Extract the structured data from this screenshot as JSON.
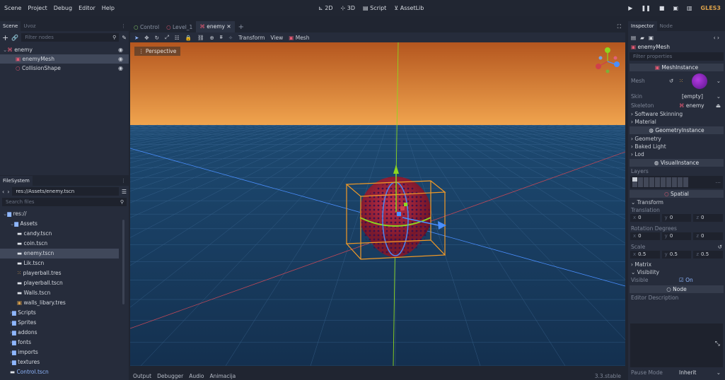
{
  "menubar": {
    "menus": [
      "Scene",
      "Project",
      "Debug",
      "Editor",
      "Help"
    ],
    "modes": [
      "2D",
      "3D",
      "Script",
      "AssetLib"
    ],
    "play_icons": [
      "play-icon",
      "pause-icon",
      "stop-icon",
      "play-scene-icon",
      "play-custom-icon"
    ],
    "renderer": "GLES3"
  },
  "scene_dock": {
    "tabs": [
      "Scene",
      "Uvoz"
    ],
    "filter_placeholder": "Filter nodes",
    "nodes": [
      {
        "label": "enemy",
        "indent": 0,
        "selected": false
      },
      {
        "label": "enemyMesh",
        "indent": 1,
        "selected": true
      },
      {
        "label": "CollisionShape",
        "indent": 1,
        "selected": false
      }
    ]
  },
  "filesystem": {
    "title": "FileSystem",
    "path": "res://Assets/enemy.tscn",
    "search_placeholder": "Search files",
    "items": [
      {
        "label": "res://",
        "indent": 0,
        "type": "folder",
        "selected": false
      },
      {
        "label": "Assets",
        "indent": 1,
        "type": "folder",
        "selected": false
      },
      {
        "label": "candy.tscn",
        "indent": 2,
        "type": "scene",
        "selected": false
      },
      {
        "label": "coin.tscn",
        "indent": 2,
        "type": "scene",
        "selected": false
      },
      {
        "label": "enemy.tscn",
        "indent": 2,
        "type": "scene",
        "selected": true
      },
      {
        "label": "Lik.tscn",
        "indent": 2,
        "type": "scene",
        "selected": false
      },
      {
        "label": "playerball.tres",
        "indent": 2,
        "type": "resource",
        "selected": false
      },
      {
        "label": "playerball.tscn",
        "indent": 2,
        "type": "scene",
        "selected": false
      },
      {
        "label": "Walls.tscn",
        "indent": 2,
        "type": "scene",
        "selected": false
      },
      {
        "label": "walls_libary.tres",
        "indent": 2,
        "type": "library",
        "selected": false
      },
      {
        "label": "Scripts",
        "indent": 1,
        "type": "folder",
        "selected": false
      },
      {
        "label": "Sprites",
        "indent": 1,
        "type": "folder",
        "selected": false
      },
      {
        "label": "addons",
        "indent": 1,
        "type": "folder",
        "selected": false
      },
      {
        "label": "fonts",
        "indent": 1,
        "type": "folder",
        "selected": false
      },
      {
        "label": "imports",
        "indent": 1,
        "type": "folder",
        "selected": false
      },
      {
        "label": "textures",
        "indent": 1,
        "type": "folder",
        "selected": false
      },
      {
        "label": "Control.tscn",
        "indent": 1,
        "type": "scene",
        "selected": false
      }
    ]
  },
  "viewport": {
    "tabs": [
      {
        "label": "Control",
        "active": false
      },
      {
        "label": "Level_1",
        "active": false
      },
      {
        "label": "enemy",
        "active": true
      }
    ],
    "tools": [
      "Transform",
      "View",
      "Mesh"
    ],
    "perspective_label": "Perspective",
    "bottom_tabs": [
      "Output",
      "Debugger",
      "Audio",
      "Animacija"
    ],
    "version": "3.3.stable"
  },
  "inspector": {
    "tabs": [
      "Inspector",
      "Node"
    ],
    "node_name": "enemyMesh",
    "filter_placeholder": "Filter properties",
    "mesh_instance": "MeshInstance",
    "mesh_label": "Mesh",
    "skin_label": "Skin",
    "skin_value": "[empty]",
    "skeleton_label": "Skeleton",
    "skeleton_value": "enemy",
    "software_skinning": "Software Skinning",
    "material": "Material",
    "geometry_instance": "GeometryInstance",
    "geometry": "Geometry",
    "baked_light": "Baked Light",
    "lod": "Lod",
    "visual_instance": "VisualInstance",
    "layers": "Layers",
    "spatial": "Spatial",
    "transform": "Transform",
    "translation": "Translation",
    "translation_values": {
      "x": "0",
      "y": "0",
      "z": "0"
    },
    "rotation": "Rotation Degrees",
    "rotation_values": {
      "x": "0",
      "y": "0",
      "z": "0"
    },
    "scale": "Scale",
    "scale_values": {
      "x": "0.5",
      "y": "0.5",
      "z": "0.5"
    },
    "matrix": "Matrix",
    "visibility": "Visibility",
    "visible_label": "Visible",
    "visible_value": "On",
    "node": "Node",
    "editor_description": "Editor Description",
    "pause_mode_label": "Pause Mode",
    "pause_mode_value": "Inherit"
  },
  "colors": {
    "accent": "#8fb7ff",
    "sky_top": "#b4561f",
    "sky_horizon": "#f0a44e",
    "ground": "#163458",
    "gizmo_orange": "#f29a26",
    "x_axis": "#d0404b",
    "y_axis": "#8dd61f",
    "z_axis": "#4a8fff"
  }
}
